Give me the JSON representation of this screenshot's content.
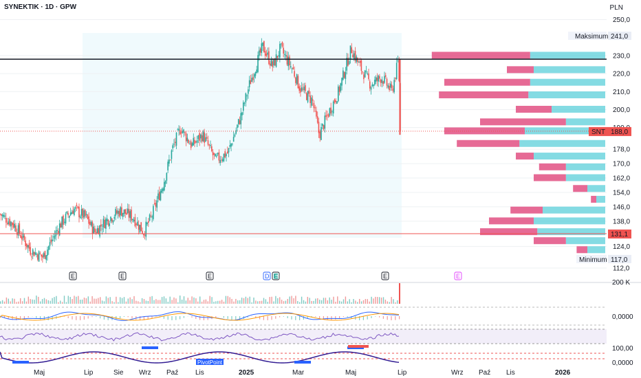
{
  "header": {
    "title": "SYNEKTIK · 1D · GPW",
    "currency": "PLN"
  },
  "chart_data": {
    "type": "candlestick",
    "symbol": "SNT",
    "ylim": [
      112,
      250
    ],
    "y_ticks": [
      "250,0",
      "241,0",
      "230,0",
      "220,0",
      "210,0",
      "200,0",
      "190,0",
      "188,0",
      "178,0",
      "170,0",
      "162,0",
      "154,0",
      "146,0",
      "138,0",
      "131,1",
      "124,0",
      "117,0",
      "112,0"
    ],
    "x_ticks": [
      "Maj",
      "Lip",
      "Sie",
      "Wrz",
      "Paź",
      "Lis",
      "2025",
      "Mar",
      "Maj",
      "Lip",
      "Wrz",
      "Paź",
      "Lis",
      "2026"
    ],
    "x_ticks_bold": [
      "2025",
      "2026"
    ],
    "last_price": {
      "label": "SNT",
      "value": "188,0"
    },
    "max_label": {
      "label": "Maksimum",
      "value": "241,0"
    },
    "min_label": {
      "label": "Minimum",
      "value": "117,0"
    },
    "support_level": {
      "value": "131,1"
    },
    "resistance_level": 228,
    "approx_close_path": [
      [
        "2024-03-15",
        142
      ],
      [
        "2024-04-01",
        136
      ],
      [
        "2024-04-20",
        122
      ],
      [
        "2024-05-05",
        118
      ],
      [
        "2024-05-25",
        136
      ],
      [
        "2024-06-10",
        145
      ],
      [
        "2024-06-25",
        140
      ],
      [
        "2024-07-05",
        132
      ],
      [
        "2024-07-20",
        139
      ],
      [
        "2024-08-05",
        144
      ],
      [
        "2024-08-20",
        140
      ],
      [
        "2024-09-01",
        132
      ],
      [
        "2024-09-10",
        140
      ],
      [
        "2024-09-25",
        160
      ],
      [
        "2024-10-05",
        178
      ],
      [
        "2024-10-15",
        190
      ],
      [
        "2024-10-28",
        180
      ],
      [
        "2024-11-10",
        186
      ],
      [
        "2024-11-25",
        172
      ],
      [
        "2024-12-10",
        176
      ],
      [
        "2024-12-25",
        196
      ],
      [
        "2025-01-05",
        215
      ],
      [
        "2025-01-20",
        235
      ],
      [
        "2025-02-01",
        224
      ],
      [
        "2025-02-10",
        234
      ],
      [
        "2025-02-25",
        222
      ],
      [
        "2025-03-05",
        212
      ],
      [
        "2025-03-20",
        205
      ],
      [
        "2025-03-28",
        186
      ],
      [
        "2025-04-08",
        198
      ],
      [
        "2025-04-20",
        210
      ],
      [
        "2025-05-05",
        234
      ],
      [
        "2025-05-15",
        224
      ],
      [
        "2025-05-28",
        214
      ],
      [
        "2025-06-10",
        218
      ],
      [
        "2025-06-22",
        210
      ],
      [
        "2025-06-30",
        228
      ],
      [
        "2025-07-02",
        188
      ]
    ],
    "volume_profile": [
      {
        "price": 230,
        "up": 0.42,
        "down": 0.55
      },
      {
        "price": 222,
        "up": 0.4,
        "down": 0.15
      },
      {
        "price": 215,
        "up": 0.42,
        "down": 0.48
      },
      {
        "price": 208,
        "up": 0.43,
        "down": 0.5
      },
      {
        "price": 200,
        "up": 0.3,
        "down": 0.2
      },
      {
        "price": 193,
        "up": 0.22,
        "down": 0.48
      },
      {
        "price": 188,
        "up": 0.45,
        "down": 0.45
      },
      {
        "price": 181,
        "up": 0.48,
        "down": 0.35
      },
      {
        "price": 174,
        "up": 0.4,
        "down": 0.1
      },
      {
        "price": 168,
        "up": 0.22,
        "down": 0.15
      },
      {
        "price": 162,
        "up": 0.22,
        "down": 0.18
      },
      {
        "price": 156,
        "up": 0.1,
        "down": 0.08
      },
      {
        "price": 150,
        "up": 0.05,
        "down": 0.03
      },
      {
        "price": 144,
        "up": 0.35,
        "down": 0.18
      },
      {
        "price": 138,
        "up": 0.4,
        "down": 0.25
      },
      {
        "price": 132,
        "up": 0.38,
        "down": 0.32
      },
      {
        "price": 127,
        "up": 0.22,
        "down": 0.18
      },
      {
        "price": 122,
        "up": 0.1,
        "down": 0.06
      }
    ],
    "event_markers": [
      "E",
      "E",
      "E",
      "D",
      "E",
      "E",
      "E"
    ],
    "indicator_labels": [
      "200 K",
      "0,0000",
      "100,00",
      "0,0000"
    ],
    "pivot_label": "PivotPoint"
  }
}
